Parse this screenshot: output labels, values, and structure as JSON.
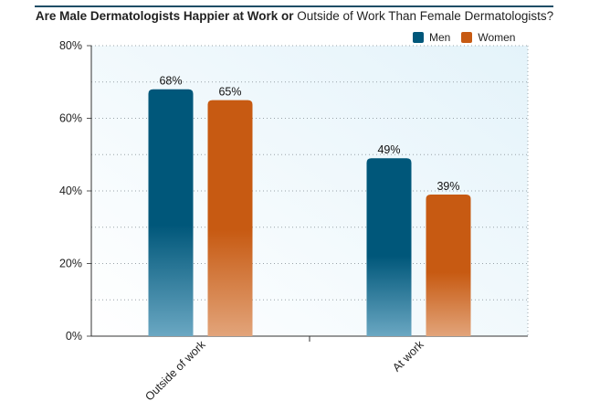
{
  "title": {
    "bold_part": "Are Male Dermatologists Happier at Work or",
    "regular_part": "Outside of Work Than Female Dermatologists?"
  },
  "colors": {
    "men": "#00577a",
    "women": "#c75a12",
    "plot_bg": "#eef7fb",
    "rule": "#1f4e66"
  },
  "chart_data": {
    "type": "bar",
    "title": "Are Male Dermatologists Happier at Work or Outside of Work Than Female Dermatologists?",
    "categories": [
      "Outside of work",
      "At work"
    ],
    "series": [
      {
        "name": "Men",
        "values": [
          68,
          49
        ],
        "labels": [
          "68%",
          "49%"
        ]
      },
      {
        "name": "Women",
        "values": [
          65,
          39
        ],
        "labels": [
          "65%",
          "39%"
        ]
      }
    ],
    "ylim": [
      0,
      80
    ],
    "yticks": [
      0,
      20,
      40,
      60,
      80
    ],
    "ytick_labels": [
      "0%",
      "20%",
      "40%",
      "60%",
      "80%"
    ],
    "xlabel": "",
    "ylabel": "",
    "grid": true,
    "legend_position": "top-right"
  }
}
